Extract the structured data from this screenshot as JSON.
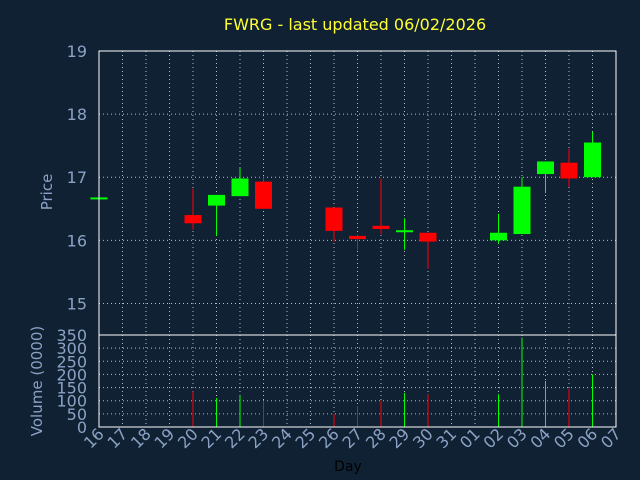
{
  "chart_data": {
    "type": "candlestick",
    "title": "FWRG - last updated 06/02/2026",
    "xlabel": "Day",
    "price_ylabel": "Price",
    "volume_ylabel": "Volume (0000)",
    "price_ylim": [
      14.5,
      19
    ],
    "price_yticks": [
      15,
      16,
      17,
      18,
      19
    ],
    "volume_ylim": [
      0,
      350
    ],
    "volume_yticks": [
      0,
      50,
      100,
      150,
      200,
      250,
      300,
      350
    ],
    "grid": true,
    "colors": {
      "up": "#00ff00",
      "down": "#ff0000",
      "background": "#0f2133",
      "title": "#ffff33",
      "axis_text": "#8ba2c4",
      "grid": "#ffffff"
    },
    "x_labels": [
      "16",
      "17",
      "18",
      "19",
      "20",
      "21",
      "22",
      "23",
      "24",
      "25",
      "26",
      "27",
      "28",
      "29",
      "30",
      "31",
      "01",
      "02",
      "03",
      "04",
      "05",
      "06",
      "07"
    ],
    "candles": [
      {
        "day": "16",
        "open": 16.65,
        "close": 16.68,
        "high": 16.68,
        "low": 16.65,
        "volume": 0
      },
      {
        "day": "20",
        "open": 16.4,
        "close": 16.27,
        "high": 16.82,
        "low": 16.17,
        "volume": 135
      },
      {
        "day": "21",
        "open": 16.55,
        "close": 16.72,
        "high": 16.72,
        "low": 16.07,
        "volume": 110
      },
      {
        "day": "22",
        "open": 16.7,
        "close": 16.98,
        "high": 17.15,
        "low": 16.7,
        "volume": 120
      },
      {
        "day": "23",
        "open": 16.93,
        "close": 16.5,
        "high": 17.0,
        "low": 16.5,
        "volume": 95
      },
      {
        "day": "26",
        "open": 16.52,
        "close": 16.15,
        "high": 16.52,
        "low": 15.98,
        "volume": 50
      },
      {
        "day": "27",
        "open": 16.07,
        "close": 16.02,
        "high": 16.08,
        "low": 15.85,
        "volume": 80
      },
      {
        "day": "28",
        "open": 16.23,
        "close": 16.18,
        "high": 16.98,
        "low": 16.1,
        "volume": 100
      },
      {
        "day": "29",
        "open": 16.13,
        "close": 16.16,
        "high": 16.35,
        "low": 15.85,
        "volume": 130
      },
      {
        "day": "30",
        "open": 16.12,
        "close": 15.98,
        "high": 16.12,
        "low": 15.55,
        "volume": 125
      },
      {
        "day": "02",
        "open": 16.0,
        "close": 16.12,
        "high": 16.42,
        "low": 15.95,
        "volume": 125
      },
      {
        "day": "03",
        "open": 16.1,
        "close": 16.85,
        "high": 17.0,
        "low": 16.1,
        "volume": 340
      },
      {
        "day": "04",
        "open": 17.05,
        "close": 17.25,
        "high": 17.25,
        "low": 16.75,
        "volume": 175
      },
      {
        "day": "05",
        "open": 17.23,
        "close": 16.98,
        "high": 17.45,
        "low": 16.85,
        "volume": 145
      },
      {
        "day": "06",
        "open": 17.0,
        "close": 17.55,
        "high": 17.72,
        "low": 17.0,
        "volume": 200
      }
    ]
  }
}
